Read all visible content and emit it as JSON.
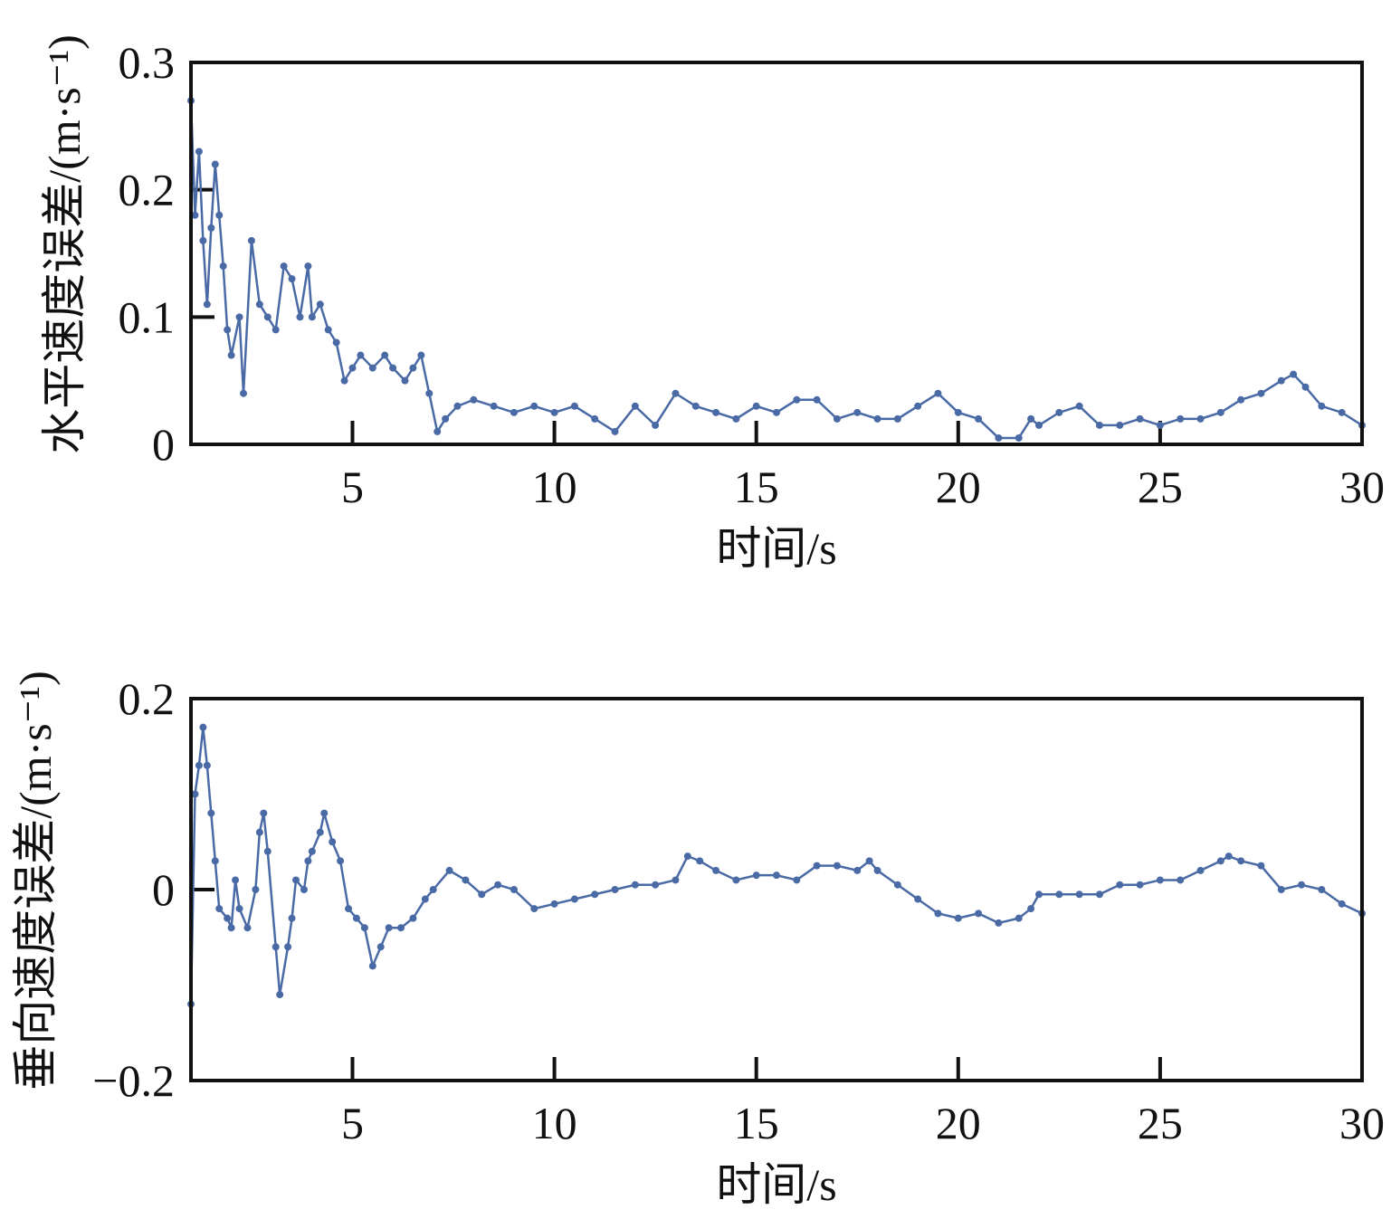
{
  "chart_data": [
    {
      "type": "line",
      "y_label": "水平速度误差/(m·s⁻¹)",
      "x_label": "时间/s",
      "xlim": [
        1,
        30
      ],
      "xticks": [
        5,
        10,
        15,
        20,
        25,
        30
      ],
      "ylim": [
        0,
        0.3
      ],
      "yticks": [
        0,
        0.1,
        0.2,
        0.3
      ],
      "series": [
        {
          "color": "#4a6aa5",
          "x": [
            1.0,
            1.1,
            1.2,
            1.3,
            1.4,
            1.5,
            1.6,
            1.7,
            1.8,
            1.9,
            2.0,
            2.2,
            2.3,
            2.5,
            2.7,
            2.9,
            3.1,
            3.3,
            3.5,
            3.7,
            3.9,
            4.0,
            4.2,
            4.4,
            4.6,
            4.8,
            5.0,
            5.2,
            5.5,
            5.8,
            6.0,
            6.3,
            6.5,
            6.7,
            6.9,
            7.1,
            7.3,
            7.6,
            8.0,
            8.5,
            9.0,
            9.5,
            10,
            10.5,
            11,
            11.5,
            12,
            12.5,
            13,
            13.5,
            14,
            14.5,
            15,
            15.5,
            16,
            16.5,
            17,
            17.5,
            18,
            18.5,
            19,
            19.5,
            20,
            20.5,
            21,
            21.5,
            21.8,
            22,
            22.5,
            23,
            23.5,
            24,
            24.5,
            25,
            25.5,
            26,
            26.5,
            27,
            27.5,
            28,
            28.3,
            28.6,
            29,
            29.5,
            30
          ],
          "values": [
            0.27,
            0.18,
            0.23,
            0.16,
            0.11,
            0.17,
            0.22,
            0.18,
            0.14,
            0.09,
            0.07,
            0.1,
            0.04,
            0.16,
            0.11,
            0.1,
            0.09,
            0.14,
            0.13,
            0.1,
            0.14,
            0.1,
            0.11,
            0.09,
            0.08,
            0.05,
            0.06,
            0.07,
            0.06,
            0.07,
            0.06,
            0.05,
            0.06,
            0.07,
            0.04,
            0.01,
            0.02,
            0.03,
            0.035,
            0.03,
            0.025,
            0.03,
            0.025,
            0.03,
            0.02,
            0.01,
            0.03,
            0.015,
            0.04,
            0.03,
            0.025,
            0.02,
            0.03,
            0.025,
            0.035,
            0.035,
            0.02,
            0.025,
            0.02,
            0.02,
            0.03,
            0.04,
            0.025,
            0.02,
            0.005,
            0.005,
            0.02,
            0.015,
            0.025,
            0.03,
            0.015,
            0.015,
            0.02,
            0.015,
            0.02,
            0.02,
            0.025,
            0.035,
            0.04,
            0.05,
            0.055,
            0.045,
            0.03,
            0.025,
            0.015
          ]
        }
      ]
    },
    {
      "type": "line",
      "y_label": "垂向速度误差/(m·s⁻¹)",
      "x_label": "时间/s",
      "xlim": [
        1,
        30
      ],
      "xticks": [
        5,
        10,
        15,
        20,
        25,
        30
      ],
      "ylim": [
        -0.2,
        0.2
      ],
      "yticks": [
        {
          "value": -0.2,
          "label": "−0.2"
        },
        0,
        0.2
      ],
      "series": [
        {
          "color": "#4a6aa5",
          "x": [
            1.0,
            1.1,
            1.2,
            1.3,
            1.4,
            1.5,
            1.6,
            1.7,
            1.9,
            2.0,
            2.1,
            2.2,
            2.4,
            2.6,
            2.7,
            2.8,
            2.9,
            3.1,
            3.2,
            3.4,
            3.5,
            3.6,
            3.8,
            3.9,
            4.0,
            4.2,
            4.3,
            4.5,
            4.7,
            4.9,
            5.1,
            5.3,
            5.5,
            5.7,
            5.9,
            6.2,
            6.5,
            6.8,
            7.0,
            7.4,
            7.8,
            8.2,
            8.6,
            9.0,
            9.5,
            10,
            10.5,
            11,
            11.5,
            12,
            12.5,
            13,
            13.3,
            13.6,
            14,
            14.5,
            15,
            15.5,
            16,
            16.5,
            17,
            17.5,
            17.8,
            18,
            18.5,
            19,
            19.5,
            20,
            20.5,
            21,
            21.5,
            21.8,
            22,
            22.5,
            23,
            23.5,
            24,
            24.5,
            25,
            25.5,
            26,
            26.5,
            26.7,
            27,
            27.5,
            28,
            28.5,
            29,
            29.5,
            30
          ],
          "values": [
            -0.12,
            0.1,
            0.13,
            0.17,
            0.13,
            0.08,
            0.03,
            -0.02,
            -0.03,
            -0.04,
            0.01,
            -0.02,
            -0.04,
            0.0,
            0.06,
            0.08,
            0.04,
            -0.06,
            -0.11,
            -0.06,
            -0.03,
            0.01,
            0.0,
            0.03,
            0.04,
            0.06,
            0.08,
            0.05,
            0.03,
            -0.02,
            -0.03,
            -0.04,
            -0.08,
            -0.06,
            -0.04,
            -0.04,
            -0.03,
            -0.01,
            0.0,
            0.02,
            0.01,
            -0.005,
            0.005,
            0.0,
            -0.02,
            -0.015,
            -0.01,
            -0.005,
            0.0,
            0.005,
            0.005,
            0.01,
            0.035,
            0.03,
            0.02,
            0.01,
            0.015,
            0.015,
            0.01,
            0.025,
            0.025,
            0.02,
            0.03,
            0.02,
            0.005,
            -0.01,
            -0.025,
            -0.03,
            -0.025,
            -0.035,
            -0.03,
            -0.02,
            -0.005,
            -0.005,
            -0.005,
            -0.005,
            0.005,
            0.005,
            0.01,
            0.01,
            0.02,
            0.03,
            0.035,
            0.03,
            0.025,
            0.0,
            0.005,
            0.0,
            -0.015,
            -0.025
          ]
        }
      ]
    }
  ]
}
